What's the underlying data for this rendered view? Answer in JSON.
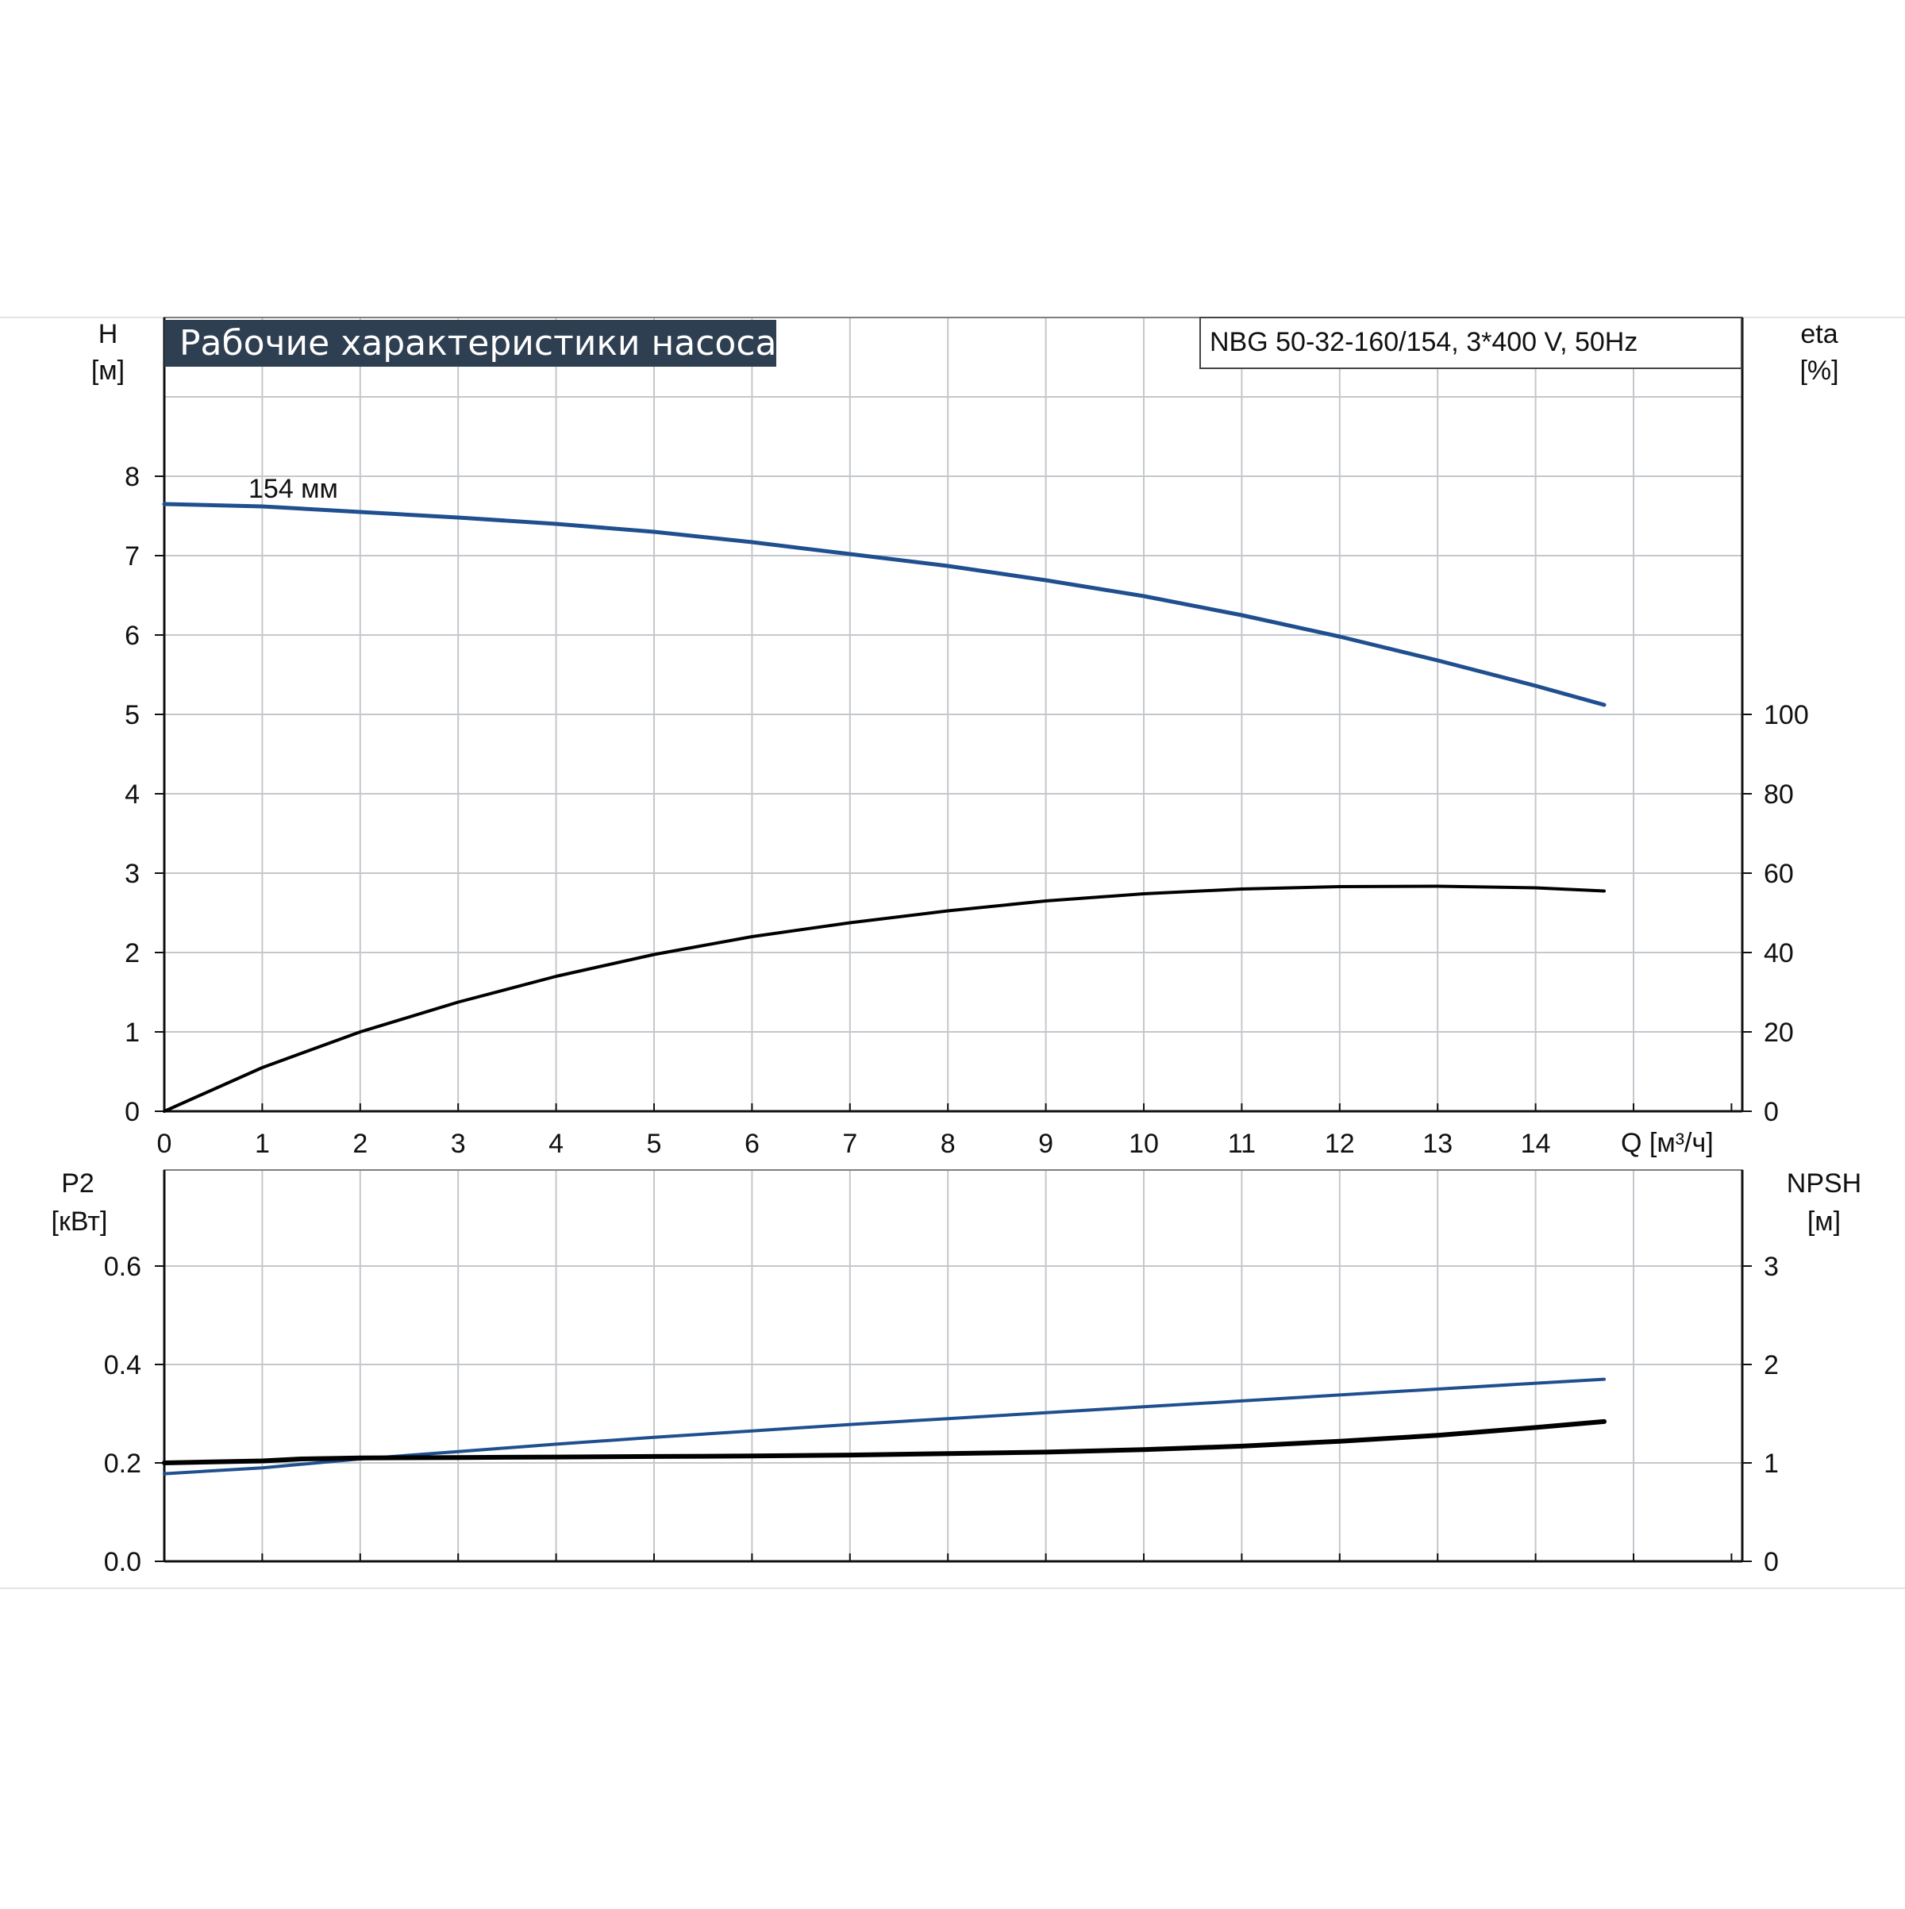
{
  "colors": {
    "grid": "#c4c7cb",
    "axis": "#111111",
    "frame": "#7f7f7f",
    "title_bg": "#2f3f52",
    "title_fg": "#ffffff",
    "blue_curve": "#1f4f8f",
    "black_curve": "#000000",
    "text": "#111111"
  },
  "chart_data": [
    {
      "type": "line",
      "title": "Рабочие характеристики насоса",
      "model_label": "NBG 50-32-160/154, 3*400 V, 50Hz",
      "xlabel": "Q [м³/ч]",
      "xlim": [
        0,
        16
      ],
      "x_ticks": [
        "0",
        "1",
        "2",
        "3",
        "4",
        "5",
        "6",
        "7",
        "8",
        "9",
        "10",
        "11",
        "12",
        "13",
        "14"
      ],
      "y_left": {
        "label_line1": "H",
        "label_line2": "[м]",
        "ylim": [
          0,
          9
        ],
        "ticks": [
          "0",
          "1",
          "2",
          "3",
          "4",
          "5",
          "6",
          "7",
          "8"
        ]
      },
      "y_right": {
        "label_line1": "eta",
        "label_line2": "[%]",
        "ylim": [
          0,
          150
        ],
        "ticks": [
          "0",
          "20",
          "40",
          "60",
          "80",
          "100"
        ]
      },
      "grid": true,
      "series": [
        {
          "name": "154 мм",
          "axis": "left",
          "color": "#1f4f8f",
          "x": [
            0,
            1,
            2,
            3,
            4,
            5,
            6,
            7,
            8,
            9,
            10,
            11,
            12,
            13,
            14,
            14.7
          ],
          "y": [
            7.65,
            7.62,
            7.55,
            7.48,
            7.4,
            7.3,
            7.17,
            7.02,
            6.87,
            6.69,
            6.49,
            6.25,
            5.98,
            5.68,
            5.36,
            5.12
          ]
        },
        {
          "axis": "right",
          "color": "#000000",
          "x": [
            0,
            1,
            2,
            3,
            4,
            5,
            6,
            7,
            8,
            9,
            10,
            11,
            12,
            13,
            14,
            14.7
          ],
          "y": [
            0,
            11,
            20,
            27.5,
            34,
            39.5,
            44,
            47.5,
            50.5,
            53,
            54.8,
            56,
            56.6,
            56.7,
            56.3,
            55.5
          ]
        }
      ]
    },
    {
      "type": "line",
      "xlim": [
        0,
        16
      ],
      "y_left": {
        "label_line1": "P2",
        "label_line2": "[кВт]",
        "ylim": [
          0,
          0.8
        ],
        "ticks": [
          "0.0",
          "0.2",
          "0.4",
          "0.6"
        ]
      },
      "y_right": {
        "label_line1": "NPSH",
        "label_line2": "[м]",
        "ylim": [
          0,
          4
        ],
        "ticks": [
          "0",
          "1",
          "2",
          "3"
        ]
      },
      "grid": true,
      "series": [
        {
          "axis": "left",
          "color": "#1f4f8f",
          "x": [
            0,
            1,
            2,
            3,
            4,
            5,
            6,
            7,
            8,
            9,
            10,
            11,
            12,
            13,
            14,
            14.7
          ],
          "y": [
            0.178,
            0.19,
            0.208,
            0.223,
            0.238,
            0.252,
            0.265,
            0.278,
            0.29,
            0.302,
            0.314,
            0.326,
            0.338,
            0.35,
            0.362,
            0.37
          ]
        },
        {
          "axis": "right",
          "color": "#000000",
          "x": [
            0,
            1,
            1.4,
            2,
            3,
            4,
            5,
            6,
            7,
            8,
            9,
            10,
            11,
            12,
            13,
            14,
            14.7
          ],
          "y": [
            1.0,
            1.02,
            1.04,
            1.05,
            1.055,
            1.06,
            1.065,
            1.07,
            1.08,
            1.095,
            1.11,
            1.135,
            1.17,
            1.22,
            1.28,
            1.36,
            1.42
          ]
        }
      ]
    }
  ]
}
